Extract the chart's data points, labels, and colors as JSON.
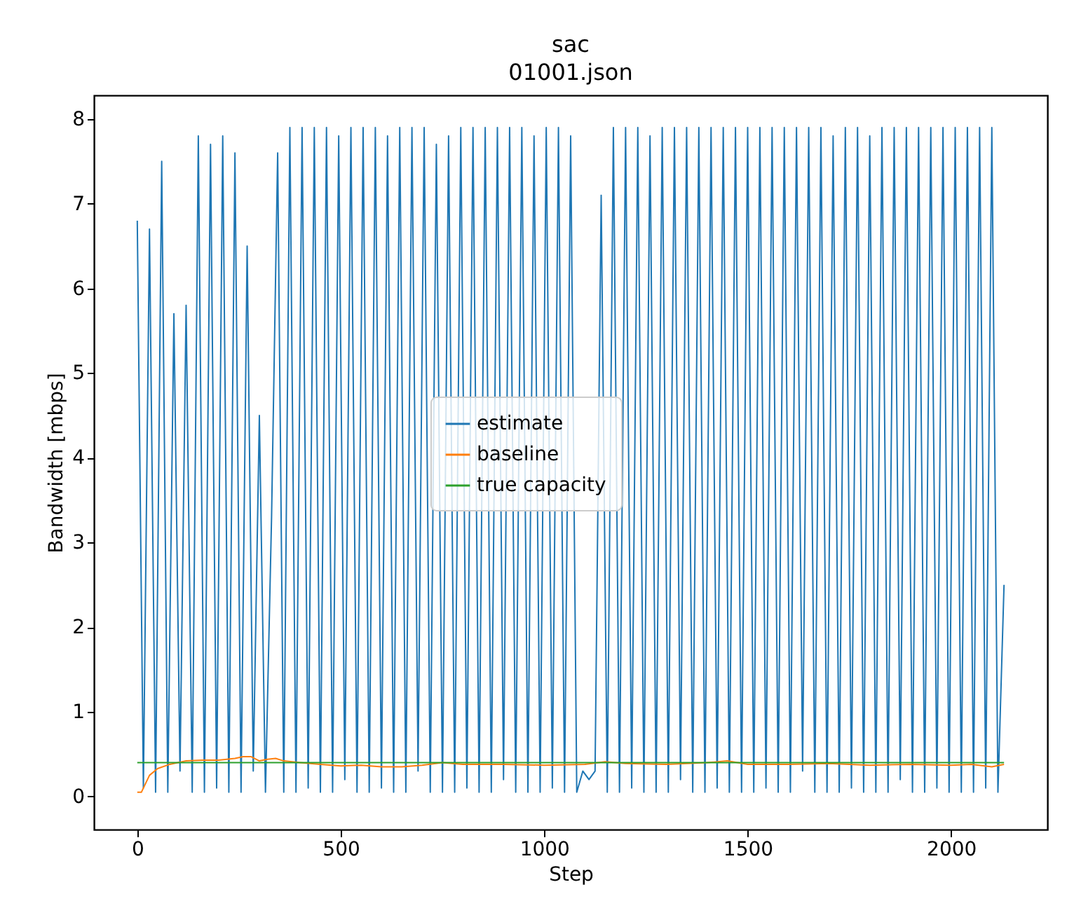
{
  "chart_data": {
    "type": "line",
    "title": "sac",
    "subtitle": "01001.json",
    "xlabel": "Step",
    "ylabel": "Bandwidth [mbps]",
    "xlim": [
      -106.5,
      2236.5
    ],
    "xticks": [
      0,
      500,
      1000,
      1500,
      2000
    ],
    "ylim": [
      -0.39,
      8.28
    ],
    "yticks": [
      0,
      1,
      2,
      3,
      4,
      5,
      6,
      7,
      8
    ],
    "grid": false,
    "legend": "center",
    "marker": "none",
    "line_style": "solid",
    "series": [
      {
        "name": "estimate",
        "color": "#1f77b4",
        "x": [
          0,
          15,
          30,
          45,
          60,
          75,
          90,
          105,
          120,
          135,
          150,
          165,
          180,
          195,
          210,
          225,
          240,
          255,
          270,
          285,
          300,
          315,
          330,
          345,
          360,
          375,
          390,
          405,
          420,
          435,
          450,
          465,
          480,
          495,
          510,
          525,
          540,
          555,
          570,
          585,
          600,
          615,
          630,
          645,
          660,
          675,
          690,
          705,
          720,
          735,
          750,
          765,
          780,
          795,
          810,
          825,
          840,
          855,
          870,
          885,
          900,
          915,
          930,
          945,
          960,
          975,
          990,
          1005,
          1020,
          1035,
          1050,
          1065,
          1080,
          1095,
          1110,
          1125,
          1140,
          1155,
          1170,
          1185,
          1200,
          1215,
          1230,
          1245,
          1260,
          1275,
          1290,
          1305,
          1320,
          1335,
          1350,
          1365,
          1380,
          1395,
          1410,
          1425,
          1440,
          1455,
          1470,
          1485,
          1500,
          1515,
          1530,
          1545,
          1560,
          1575,
          1590,
          1605,
          1620,
          1635,
          1650,
          1665,
          1680,
          1695,
          1710,
          1725,
          1740,
          1755,
          1770,
          1785,
          1800,
          1815,
          1830,
          1845,
          1860,
          1875,
          1890,
          1905,
          1920,
          1935,
          1950,
          1965,
          1980,
          1995,
          2010,
          2025,
          2040,
          2055,
          2070,
          2085,
          2100,
          2115,
          2130
        ],
        "values": [
          6.8,
          0.1,
          6.7,
          0.05,
          7.5,
          0.05,
          5.7,
          0.3,
          5.8,
          0.05,
          7.8,
          0.05,
          7.7,
          0.1,
          7.8,
          0.05,
          7.6,
          0.05,
          6.5,
          0.3,
          4.5,
          0.05,
          3.3,
          7.6,
          0.05,
          7.9,
          0.05,
          7.9,
          0.1,
          7.9,
          0.05,
          7.9,
          0.05,
          7.8,
          0.2,
          7.9,
          0.05,
          7.9,
          0.05,
          7.9,
          0.1,
          7.8,
          0.05,
          7.9,
          0.05,
          7.9,
          0.3,
          7.9,
          0.05,
          7.7,
          0.05,
          7.8,
          0.05,
          7.9,
          0.1,
          7.9,
          0.05,
          7.9,
          0.05,
          7.9,
          0.2,
          7.9,
          0.05,
          7.9,
          0.05,
          7.8,
          0.05,
          7.9,
          0.1,
          7.9,
          0.05,
          7.8,
          0.05,
          0.3,
          0.2,
          0.3,
          7.1,
          0.05,
          7.9,
          0.05,
          7.9,
          0.1,
          7.9,
          0.05,
          7.8,
          0.05,
          7.9,
          0.05,
          7.9,
          0.2,
          7.9,
          0.05,
          7.9,
          0.05,
          7.9,
          0.1,
          7.9,
          0.05,
          7.9,
          0.05,
          7.9,
          0.05,
          7.9,
          0.1,
          7.9,
          0.05,
          7.9,
          0.05,
          7.9,
          0.3,
          7.9,
          0.05,
          7.9,
          0.05,
          7.8,
          0.05,
          7.9,
          0.1,
          7.9,
          0.05,
          7.8,
          0.05,
          7.9,
          0.05,
          7.9,
          0.2,
          7.9,
          0.05,
          7.9,
          0.05,
          7.9,
          0.1,
          7.9,
          0.05,
          7.9,
          0.05,
          7.9,
          0.05,
          7.9,
          0.1,
          7.9,
          0.05,
          2.5
        ]
      },
      {
        "name": "baseline",
        "color": "#ff7f0e",
        "x": [
          0,
          10,
          30,
          50,
          80,
          120,
          160,
          200,
          240,
          260,
          280,
          300,
          320,
          340,
          360,
          400,
          450,
          500,
          550,
          600,
          650,
          700,
          750,
          800,
          900,
          1000,
          1100,
          1150,
          1200,
          1300,
          1400,
          1450,
          1500,
          1600,
          1700,
          1800,
          1900,
          2000,
          2050,
          2100,
          2130
        ],
        "values": [
          0.05,
          0.05,
          0.25,
          0.33,
          0.38,
          0.42,
          0.43,
          0.43,
          0.45,
          0.47,
          0.47,
          0.42,
          0.44,
          0.45,
          0.42,
          0.4,
          0.38,
          0.36,
          0.37,
          0.35,
          0.35,
          0.37,
          0.4,
          0.38,
          0.38,
          0.37,
          0.38,
          0.41,
          0.39,
          0.38,
          0.4,
          0.42,
          0.38,
          0.38,
          0.39,
          0.37,
          0.38,
          0.37,
          0.38,
          0.35,
          0.38
        ]
      },
      {
        "name": "true capacity",
        "color": "#2ca02c",
        "x": [
          0,
          2130
        ],
        "values": [
          0.4,
          0.4
        ]
      }
    ]
  }
}
